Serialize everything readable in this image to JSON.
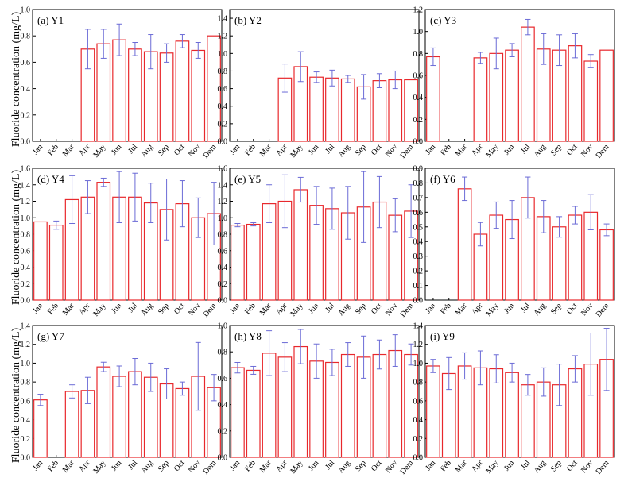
{
  "figure": {
    "y_axis_label": "Fluoride concentration (mg/L)"
  },
  "colors": {
    "bar": "#e8282c",
    "error": "#6b6bd6",
    "axis": "#000000"
  },
  "chart_data": [
    {
      "type": "bar",
      "panel": "(a) Y1",
      "categories": [
        "Jan",
        "Feb",
        "Mar",
        "Apr",
        "May",
        "Jun",
        "Jul",
        "Aug",
        "Sep",
        "Oct",
        "Nov",
        "Dem"
      ],
      "ylim": [
        0,
        1.0
      ],
      "ticks": [
        0.0,
        0.2,
        0.4,
        0.6,
        0.8,
        1.0
      ],
      "values": [
        null,
        null,
        null,
        0.7,
        0.74,
        0.77,
        0.7,
        0.68,
        0.67,
        0.76,
        0.69,
        0.8
      ],
      "errors": [
        null,
        null,
        null,
        0.15,
        0.11,
        0.12,
        0.05,
        0.13,
        0.07,
        0.05,
        0.06,
        null
      ]
    },
    {
      "type": "bar",
      "panel": "(b) Y2",
      "categories": [
        "Jan",
        "Feb",
        "Mar",
        "Apr",
        "May",
        "Jun",
        "Jul",
        "Aug",
        "Sep",
        "Oct",
        "Nov",
        "Dem"
      ],
      "ylim": [
        0,
        1.5
      ],
      "ticks": [
        0.0,
        0.2,
        0.4,
        0.6,
        0.8,
        1.0,
        1.2,
        1.4
      ],
      "values": [
        null,
        null,
        null,
        0.72,
        0.85,
        0.73,
        0.72,
        0.71,
        0.62,
        0.69,
        0.7,
        0.7
      ],
      "errors": [
        null,
        null,
        null,
        0.16,
        0.17,
        0.06,
        0.09,
        0.04,
        0.14,
        0.08,
        0.1,
        null
      ]
    },
    {
      "type": "bar",
      "panel": "(c) Y3",
      "categories": [
        "Jan",
        "Feb",
        "Mar",
        "Apr",
        "May",
        "Jun",
        "Jul",
        "Aug",
        "Sep",
        "Oct",
        "Nov",
        "Dem"
      ],
      "ylim": [
        0,
        1.2
      ],
      "ticks": [
        0.0,
        0.2,
        0.4,
        0.6,
        0.8,
        1.0,
        1.2
      ],
      "values": [
        0.77,
        null,
        null,
        0.76,
        0.8,
        0.83,
        1.04,
        0.84,
        0.83,
        0.87,
        0.73,
        0.83
      ],
      "errors": [
        0.08,
        null,
        null,
        0.05,
        0.14,
        0.06,
        0.07,
        0.14,
        0.14,
        0.11,
        0.06,
        null
      ]
    },
    {
      "type": "bar",
      "panel": "(d) Y4",
      "categories": [
        "Jan",
        "Feb",
        "Mar",
        "Apr",
        "May",
        "Jun",
        "Jul",
        "Aug",
        "Sep",
        "Oct",
        "Nov",
        "Dem"
      ],
      "ylim": [
        0,
        1.6
      ],
      "ticks": [
        0.0,
        0.2,
        0.4,
        0.6,
        0.8,
        1.0,
        1.2,
        1.4,
        1.6
      ],
      "values": [
        0.95,
        0.91,
        1.22,
        1.25,
        1.43,
        1.25,
        1.25,
        1.18,
        1.1,
        1.17,
        1.0,
        1.05
      ],
      "errors": [
        null,
        0.05,
        0.29,
        0.2,
        0.05,
        0.31,
        0.29,
        0.24,
        0.37,
        0.28,
        0.24,
        0.38
      ]
    },
    {
      "type": "bar",
      "panel": "(e) Y5",
      "categories": [
        "Jan",
        "Feb",
        "Mar",
        "Apr",
        "May",
        "Jun",
        "Jul",
        "Aug",
        "Sep",
        "Oct",
        "Nov",
        "Dem"
      ],
      "ylim": [
        0,
        1.6
      ],
      "ticks": [
        0.0,
        0.2,
        0.4,
        0.6,
        0.8,
        1.0,
        1.2,
        1.4,
        1.6
      ],
      "values": [
        0.91,
        0.92,
        1.17,
        1.2,
        1.34,
        1.15,
        1.11,
        1.06,
        1.13,
        1.19,
        1.03,
        1.08
      ],
      "errors": [
        0.02,
        0.02,
        0.23,
        0.32,
        0.15,
        0.23,
        0.25,
        0.32,
        0.43,
        0.31,
        0.2,
        0.32
      ]
    },
    {
      "type": "bar",
      "panel": "(f) Y6",
      "categories": [
        "Jan",
        "Feb",
        "Mar",
        "Apr",
        "May",
        "Jun",
        "Jul",
        "Aug",
        "Sep",
        "Oct",
        "Nov",
        "Dem"
      ],
      "ylim": [
        0,
        0.9
      ],
      "ticks": [
        0.0,
        0.1,
        0.2,
        0.3,
        0.4,
        0.5,
        0.6,
        0.7,
        0.8,
        0.9
      ],
      "values": [
        null,
        null,
        0.76,
        0.45,
        0.58,
        0.55,
        0.7,
        0.57,
        0.5,
        0.58,
        0.6,
        0.48
      ],
      "errors": [
        null,
        null,
        0.08,
        0.08,
        0.09,
        0.13,
        0.14,
        0.11,
        0.07,
        0.06,
        0.12,
        0.04
      ]
    },
    {
      "type": "bar",
      "panel": "(g) Y7",
      "categories": [
        "Jan",
        "Feb",
        "Mar",
        "Apr",
        "May",
        "Jun",
        "Jul",
        "Aug",
        "Sep",
        "Oct",
        "Nov",
        "Dem"
      ],
      "ylim": [
        0,
        1.4
      ],
      "ticks": [
        0.0,
        0.2,
        0.4,
        0.6,
        0.8,
        1.0,
        1.2,
        1.4
      ],
      "values": [
        0.61,
        null,
        0.7,
        0.71,
        0.96,
        0.86,
        0.91,
        0.85,
        0.78,
        0.73,
        0.86,
        0.74
      ],
      "errors": [
        0.06,
        null,
        0.07,
        0.14,
        0.05,
        0.11,
        0.14,
        0.15,
        0.16,
        0.07,
        0.36,
        0.14
      ]
    },
    {
      "type": "bar",
      "panel": "(h) Y8",
      "categories": [
        "Jan",
        "Feb",
        "Mar",
        "Apr",
        "May",
        "Jun",
        "Jul",
        "Aug",
        "Sep",
        "Oct",
        "Nov",
        "Dem"
      ],
      "ylim": [
        0,
        1.0
      ],
      "ticks": [
        0.0,
        0.2,
        0.4,
        0.6,
        0.8,
        1.0
      ],
      "values": [
        0.68,
        0.66,
        0.79,
        0.76,
        0.84,
        0.73,
        0.72,
        0.78,
        0.76,
        0.78,
        0.81,
        0.78
      ],
      "errors": [
        0.04,
        0.03,
        0.17,
        0.11,
        0.13,
        0.13,
        0.1,
        0.09,
        0.16,
        0.11,
        0.12,
        0.08
      ]
    },
    {
      "type": "bar",
      "panel": "(i) Y9",
      "categories": [
        "Jan",
        "Feb",
        "Mar",
        "Apr",
        "May",
        "Jun",
        "Jul",
        "Aug",
        "Sep",
        "Oct",
        "Nov",
        "Dem"
      ],
      "ylim": [
        0,
        1.4
      ],
      "ticks": [
        0.0,
        0.2,
        0.4,
        0.6,
        0.8,
        1.0,
        1.2,
        1.4
      ],
      "values": [
        0.97,
        0.89,
        0.97,
        0.95,
        0.94,
        0.9,
        0.77,
        0.8,
        0.77,
        0.94,
        0.99,
        1.04
      ],
      "errors": [
        0.07,
        0.17,
        0.14,
        0.18,
        0.15,
        0.1,
        0.11,
        0.15,
        0.22,
        0.14,
        0.33,
        0.33
      ]
    }
  ]
}
